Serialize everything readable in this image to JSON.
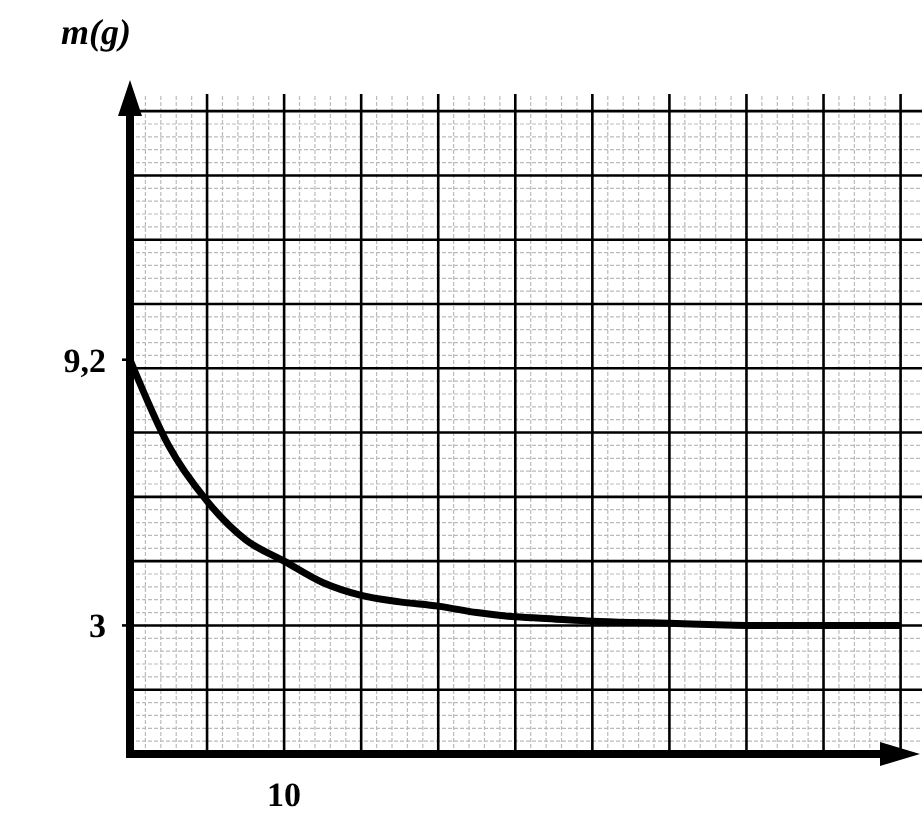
{
  "chart_data": {
    "type": "line",
    "ylabel": "m(g)",
    "categories": [
      null,
      null,
      null,
      null,
      null,
      null,
      null,
      null,
      null,
      null,
      null,
      null,
      null,
      null,
      null,
      null,
      null,
      null,
      null,
      null,
      null
    ],
    "series": [
      {
        "color": "#000000",
        "values": [
          9.2,
          7.2,
          5.9,
          5.0,
          4.5,
          4.0,
          3.7,
          3.55,
          3.45,
          3.3,
          3.2,
          3.15,
          3.1,
          3.07,
          3.05,
          3.02,
          3.0,
          3.0,
          3.0,
          3.0,
          3.0
        ]
      }
    ],
    "annotations": [
      "10"
    ],
    "ylim": [
      0,
      15.4
    ],
    "yticks": [
      {
        "value": 1.5,
        "label": null
      },
      {
        "value": 3,
        "label": "3"
      },
      {
        "value": 4.5,
        "label": null
      },
      {
        "value": 6,
        "label": null
      },
      {
        "value": 7.5,
        "label": null
      },
      {
        "value": 9,
        "label": null
      },
      {
        "value": 9.2,
        "label": "9,2"
      },
      {
        "value": 10.5,
        "label": null
      },
      {
        "value": 12,
        "label": null
      },
      {
        "value": 13.5,
        "label": null
      },
      {
        "value": 15,
        "label": null
      }
    ],
    "grid": true,
    "marker": "none",
    "line_style": "solid"
  }
}
